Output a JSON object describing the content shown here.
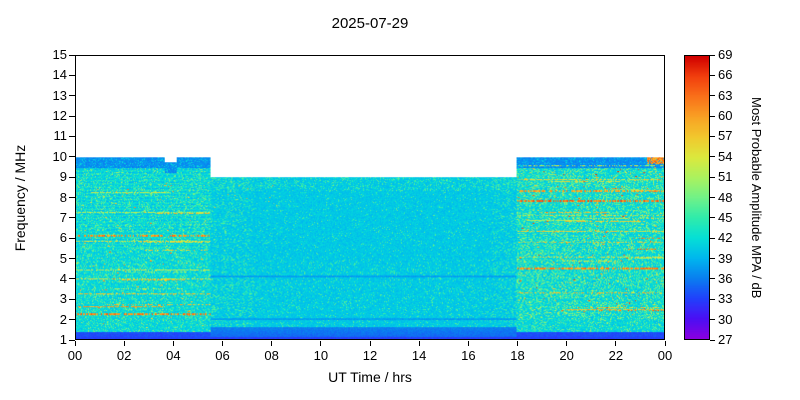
{
  "chart_data": {
    "type": "heatmap",
    "title": "2025-07-29",
    "xlabel": "UT Time / hrs",
    "ylabel": "Frequency / MHz",
    "x_range_hours": [
      0,
      24
    ],
    "x_tick_labels": [
      "00",
      "02",
      "04",
      "06",
      "08",
      "10",
      "12",
      "14",
      "16",
      "18",
      "20",
      "22",
      "00"
    ],
    "y_range_mhz": [
      1,
      15
    ],
    "y_tick_values": [
      1,
      2,
      3,
      4,
      5,
      6,
      7,
      8,
      9,
      10,
      11,
      12,
      13,
      14,
      15
    ],
    "grid": false,
    "plot_bg_color": "#ffffff",
    "frame_color": "#000000",
    "colorbar": {
      "label": "Most Probable Amplitude MPA / dB",
      "range_db": [
        27,
        69
      ],
      "tick_values": [
        27,
        30,
        33,
        36,
        39,
        42,
        45,
        48,
        51,
        54,
        57,
        60,
        63,
        66,
        69
      ],
      "color_stops": [
        {
          "db": 27,
          "color": "#8A00E0"
        },
        {
          "db": 30,
          "color": "#4A10F5"
        },
        {
          "db": 33,
          "color": "#2142FC"
        },
        {
          "db": 36,
          "color": "#0A80F0"
        },
        {
          "db": 39,
          "color": "#00B8EE"
        },
        {
          "db": 42,
          "color": "#06E0D6"
        },
        {
          "db": 45,
          "color": "#30ECAC"
        },
        {
          "db": 48,
          "color": "#72F288"
        },
        {
          "db": 51,
          "color": "#ACF25E"
        },
        {
          "db": 54,
          "color": "#DCE93E"
        },
        {
          "db": 57,
          "color": "#F2C92E"
        },
        {
          "db": 60,
          "color": "#F9A124"
        },
        {
          "db": 63,
          "color": "#FA711A"
        },
        {
          "db": 66,
          "color": "#F2400E"
        },
        {
          "db": 69,
          "color": "#D10000"
        }
      ]
    },
    "coverage_envelope": [
      {
        "t_start": 0.0,
        "t_end": 3.6,
        "f_max_mhz": 10.0
      },
      {
        "t_start": 3.6,
        "t_end": 4.1,
        "f_max_mhz": 9.75
      },
      {
        "t_start": 4.1,
        "t_end": 5.5,
        "f_max_mhz": 10.0
      },
      {
        "t_start": 5.5,
        "t_end": 18.0,
        "f_max_mhz": 9.0
      },
      {
        "t_start": 18.0,
        "t_end": 24.0,
        "f_max_mhz": 10.0
      }
    ],
    "field": {
      "day_window_hours": [
        5.5,
        18
      ],
      "day_mean_db": 40.2,
      "night_mean_db": 41,
      "pixel_noise_db": 3,
      "bottom_band": {
        "f_top_mhz": 1.35,
        "mean_db": 33.5
      },
      "day_bottom_band": {
        "f_top_mhz": 1.6,
        "mean_db": 34.5
      },
      "top_night_band": {
        "depth_mhz": 0.55,
        "mean_db": 36.8
      },
      "day_quiet_lines_mhz": [
        2.0,
        4.1
      ],
      "corner_hot_patch": {
        "t_hours": [
          23.3,
          24.0
        ],
        "f_mhz": [
          9.7,
          10.0
        ],
        "db": 61
      }
    },
    "interference": {
      "seed": 20250729,
      "morning_strong_lines": [
        {
          "f_mhz": 2.3,
          "db": 62
        },
        {
          "f_mhz": 3.25,
          "db": 57
        },
        {
          "f_mhz": 4.0,
          "db": 54
        },
        {
          "f_mhz": 4.45,
          "db": 52
        },
        {
          "f_mhz": 5.85,
          "db": 55
        },
        {
          "f_mhz": 6.15,
          "db": 61
        },
        {
          "f_mhz": 7.3,
          "db": 52
        }
      ],
      "evening_strong_lines": [
        {
          "f_mhz": 3.3,
          "db": 58
        },
        {
          "f_mhz": 4.55,
          "db": 61
        },
        {
          "f_mhz": 5.1,
          "db": 55
        },
        {
          "f_mhz": 5.8,
          "db": 57
        },
        {
          "f_mhz": 6.35,
          "db": 56
        },
        {
          "f_mhz": 7.15,
          "db": 54
        },
        {
          "f_mhz": 7.9,
          "db": 63
        },
        {
          "f_mhz": 8.35,
          "db": 60
        },
        {
          "f_mhz": 8.9,
          "db": 55
        },
        {
          "f_mhz": 9.6,
          "db": 53
        }
      ],
      "morning_random_streaks": 10,
      "evening_random_streaks": 16,
      "morning_dot_count": 160,
      "evening_dot_count": 320
    }
  }
}
